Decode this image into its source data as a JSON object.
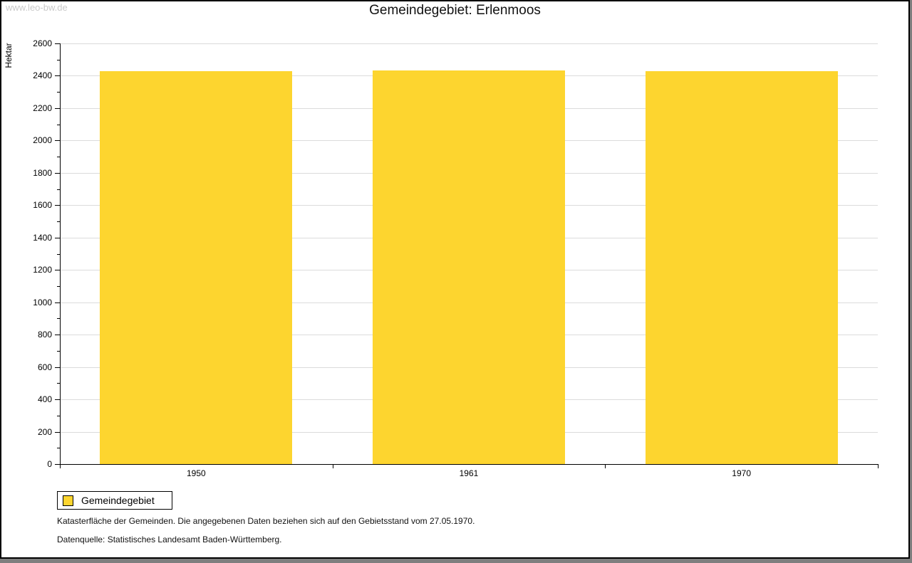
{
  "watermark": "www.leo-bw.de",
  "title": "Gemeindegebiet: Erlenmoos",
  "y_axis_label": "Hektar",
  "legend": {
    "items": [
      {
        "label": "Gemeindegebiet",
        "swatch_color": "#FDD52F"
      }
    ]
  },
  "footer": {
    "line1": "Katasterfläche der Gemeinden. Die angegebenen Daten beziehen sich auf den Gebietsstand vom 27.05.1970.",
    "line2": "Datenquelle: Statistisches Landesamt Baden-Württemberg."
  },
  "colors": {
    "bar": "#FDD52F",
    "grid": "#DBDBDB",
    "axis": "#000000",
    "watermark": "#C9C9C9",
    "background": "#FFFFFF",
    "shadow": "#7F7F7F"
  },
  "chart_data": {
    "type": "bar",
    "title": "Gemeindegebiet: Erlenmoos",
    "categories": [
      "1950",
      "1961",
      "1970"
    ],
    "series": [
      {
        "name": "Gemeindegebiet",
        "values": [
          2428,
          2434,
          2427
        ]
      }
    ],
    "xlabel": "",
    "ylabel": "Hektar",
    "ylim": [
      0,
      2600
    ],
    "ytick_step": 200,
    "yminor_step": 100,
    "grid": true,
    "legend_position": "bottom-left"
  }
}
